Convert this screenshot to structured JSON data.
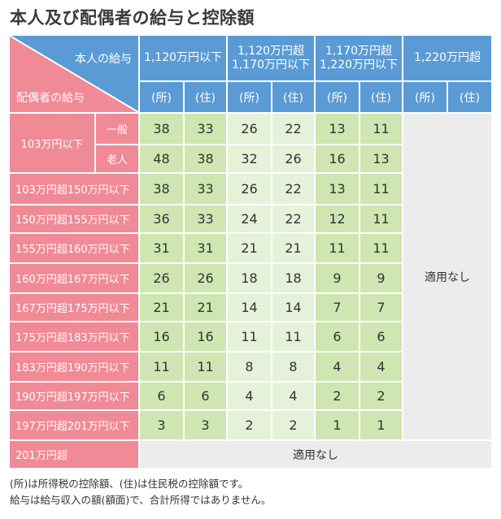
{
  "title": "本人及び配偶者の給与と控除額",
  "corner": {
    "top": "本人の給与",
    "bottom": "配偶者の給与"
  },
  "columns": [
    {
      "line1": "1,120万円以下",
      "line2": ""
    },
    {
      "line1": "1,120万円超",
      "line2": "1,170万円以下"
    },
    {
      "line1": "1,170万円超",
      "line2": "1,220万円以下"
    },
    {
      "line1": "1,220万円超",
      "line2": ""
    }
  ],
  "subheaders": [
    "(所)",
    "(住)",
    "(所)",
    "(住)",
    "(所)",
    "(住)",
    "(所)",
    "(住)"
  ],
  "group_label": "103万円以下",
  "rows": [
    {
      "label": "一般",
      "values": [
        "38",
        "33",
        "26",
        "22",
        "13",
        "11"
      ]
    },
    {
      "label": "老人",
      "values": [
        "48",
        "38",
        "32",
        "26",
        "16",
        "13"
      ]
    },
    {
      "label": "103万円超150万円以下",
      "values": [
        "38",
        "33",
        "26",
        "22",
        "13",
        "11"
      ]
    },
    {
      "label": "150万円超155万円以下",
      "values": [
        "36",
        "33",
        "24",
        "22",
        "12",
        "11"
      ]
    },
    {
      "label": "155万円超160万円以下",
      "values": [
        "31",
        "31",
        "21",
        "21",
        "11",
        "11"
      ]
    },
    {
      "label": "160万円超167万円以下",
      "values": [
        "26",
        "26",
        "18",
        "18",
        "9",
        "9"
      ]
    },
    {
      "label": "167万円超175万円以下",
      "values": [
        "21",
        "21",
        "14",
        "14",
        "7",
        "7"
      ]
    },
    {
      "label": "175万円超183万円以下",
      "values": [
        "16",
        "16",
        "11",
        "11",
        "6",
        "6"
      ]
    },
    {
      "label": "183万円超190万円以下",
      "values": [
        "11",
        "11",
        "8",
        "8",
        "4",
        "4"
      ]
    },
    {
      "label": "190万円超197万円以下",
      "values": [
        "6",
        "6",
        "4",
        "4",
        "2",
        "2"
      ]
    },
    {
      "label": "197万円超201万円以下",
      "values": [
        "3",
        "3",
        "2",
        "2",
        "1",
        "1"
      ]
    }
  ],
  "last_row": {
    "label": "201万円超",
    "value": "適用なし"
  },
  "not_applicable": "適用なし",
  "notes": [
    "(所)は所得税の控除額、(住)は住民税の控除額です。",
    "給与は給与収入の額(額面)で、合計所得ではありません。"
  ],
  "colors": {
    "header_blue": "#5b9bd5",
    "label_pink": "#f08a96",
    "green_dark": "#cfe6b3",
    "green_light": "#e6f1d9",
    "gray": "#ececec"
  }
}
